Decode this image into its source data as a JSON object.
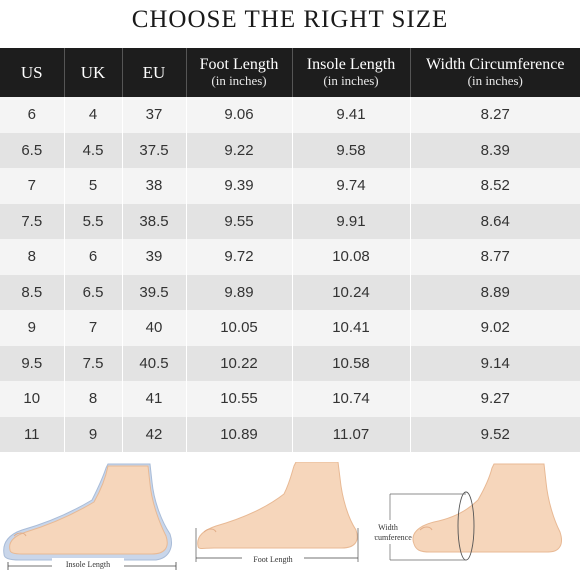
{
  "title": "CHOOSE THE RIGHT SIZE",
  "table": {
    "headers": [
      {
        "main": "US",
        "sub": ""
      },
      {
        "main": "UK",
        "sub": ""
      },
      {
        "main": "EU",
        "sub": ""
      },
      {
        "main": "Foot Length",
        "sub": "(in inches)"
      },
      {
        "main": "Insole Length",
        "sub": "(in inches)"
      },
      {
        "main": "Width Circumference",
        "sub": "(in inches)"
      }
    ],
    "rows": [
      [
        "6",
        "4",
        "37",
        "9.06",
        "9.41",
        "8.27"
      ],
      [
        "6.5",
        "4.5",
        "37.5",
        "9.22",
        "9.58",
        "8.39"
      ],
      [
        "7",
        "5",
        "38",
        "9.39",
        "9.74",
        "8.52"
      ],
      [
        "7.5",
        "5.5",
        "38.5",
        "9.55",
        "9.91",
        "8.64"
      ],
      [
        "8",
        "6",
        "39",
        "9.72",
        "10.08",
        "8.77"
      ],
      [
        "8.5",
        "6.5",
        "39.5",
        "9.89",
        "10.24",
        "8.89"
      ],
      [
        "9",
        "7",
        "40",
        "10.05",
        "10.41",
        "9.02"
      ],
      [
        "9.5",
        "7.5",
        "40.5",
        "10.22",
        "10.58",
        "9.14"
      ],
      [
        "10",
        "8",
        "41",
        "10.55",
        "10.74",
        "9.27"
      ],
      [
        "11",
        "9",
        "42",
        "10.89",
        "11.07",
        "9.52"
      ]
    ]
  },
  "illustrations": {
    "insole_label": "Insole Length",
    "foot_label": "Foot Length",
    "width_label_line1": "Width",
    "width_label_line2": "Circumference"
  },
  "colors": {
    "header_bg": "#1d1d1d",
    "row_light": "#f4f4f4",
    "row_dark": "#e3e3e3",
    "skin": "#f6d6bb",
    "skin_shadow": "#e8b994",
    "insole": "#c9d6ea"
  }
}
